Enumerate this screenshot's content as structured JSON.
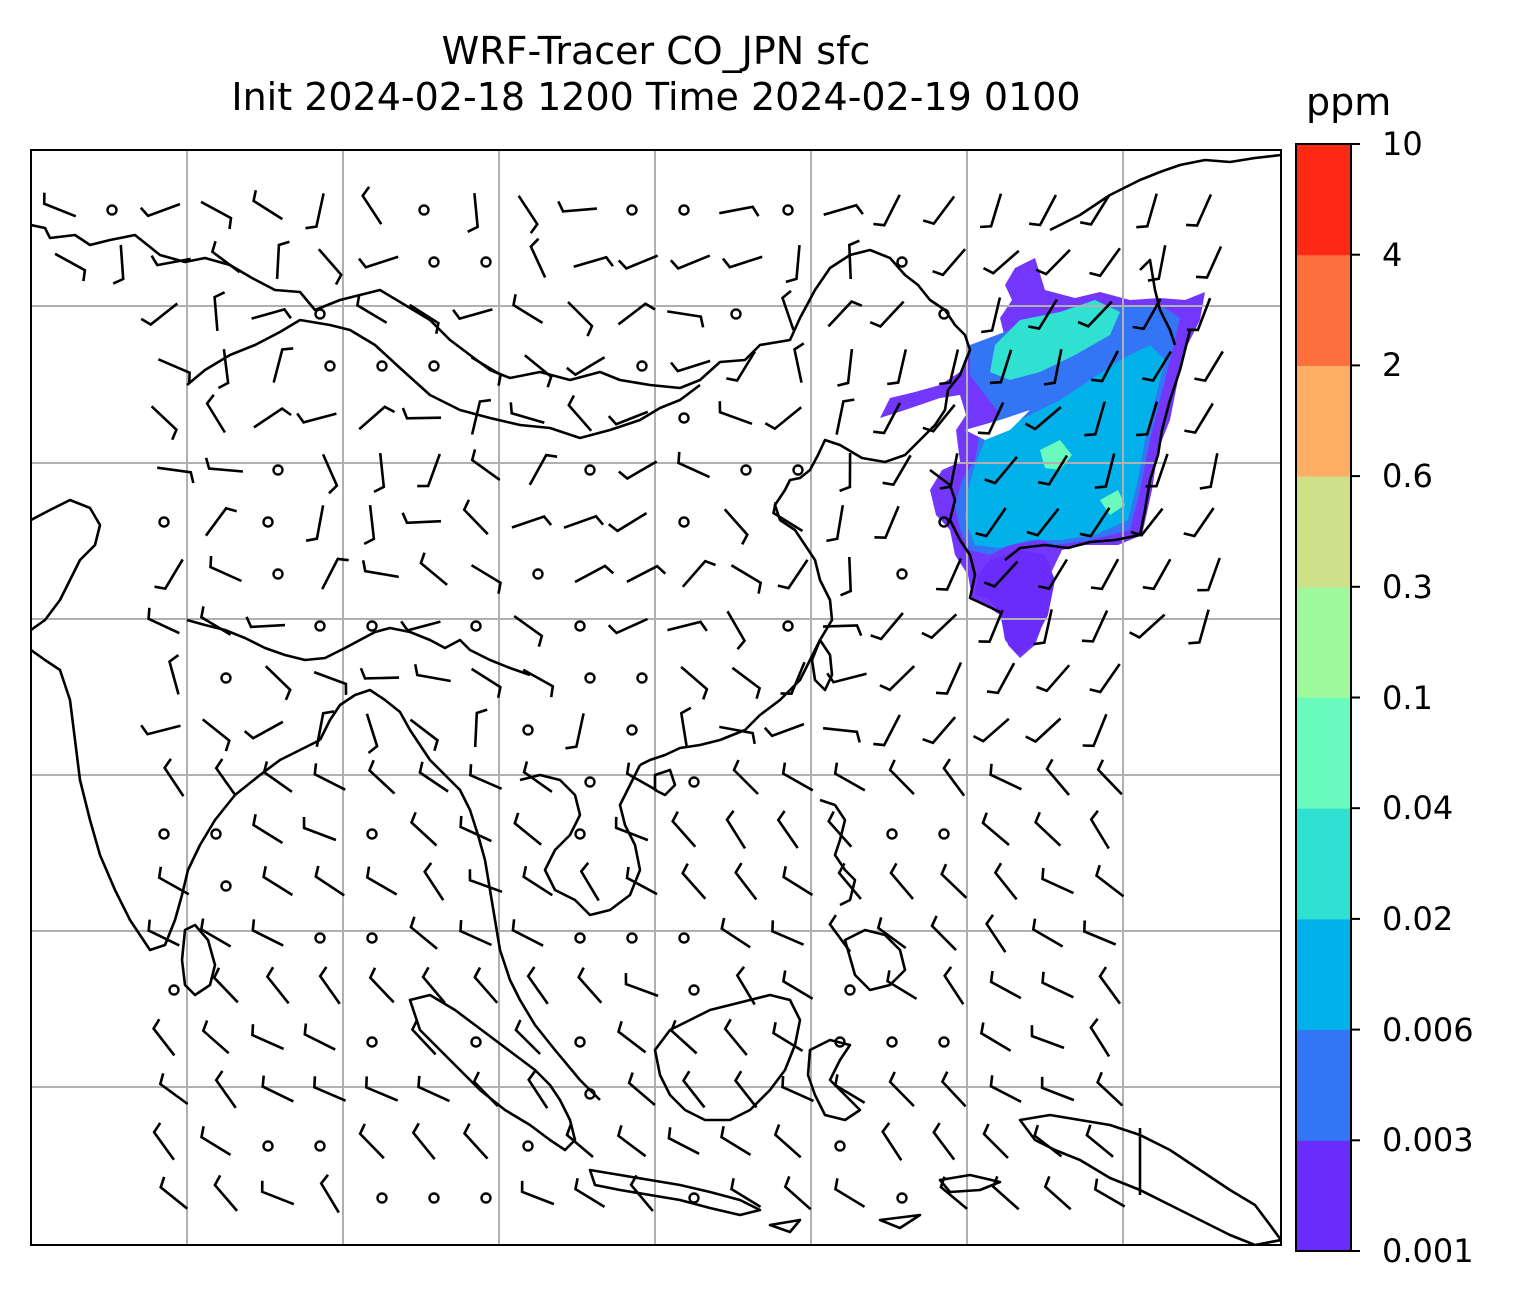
{
  "title": {
    "line1": "WRF-Tracer CO_JPN sfc",
    "line2": "Init 2024-02-18 1200 Time 2024-02-19 0100"
  },
  "colorbar": {
    "unit": "ppm",
    "levels": [
      "0.001",
      "0.003",
      "0.006",
      "0.02",
      "0.04",
      "0.1",
      "0.3",
      "0.6",
      "2",
      "4",
      "10"
    ],
    "colors": [
      "#6a2cfa",
      "#3375f5",
      "#03b1ea",
      "#30e0d1",
      "#69fbbd",
      "#9ef99a",
      "#cfe089",
      "#fcae64",
      "#fe6f3d",
      "#fe2817"
    ]
  },
  "map": {
    "region": "East / Southeast Asia",
    "gridlines": true,
    "plume_location": "Japan",
    "wind_symbol": "barbs",
    "line_color": "#000000",
    "grid_color": "#b0b0b0"
  },
  "chart_data": {
    "type": "heatmap",
    "title": "WRF-Tracer CO_JPN sfc",
    "subtitle": "Init 2024-02-18 1200 Time 2024-02-19 0100",
    "colorbar_label": "ppm",
    "colorbar_levels": [
      0.001,
      0.003,
      0.006,
      0.02,
      0.04,
      0.1,
      0.3,
      0.6,
      2,
      4,
      10
    ]
  }
}
